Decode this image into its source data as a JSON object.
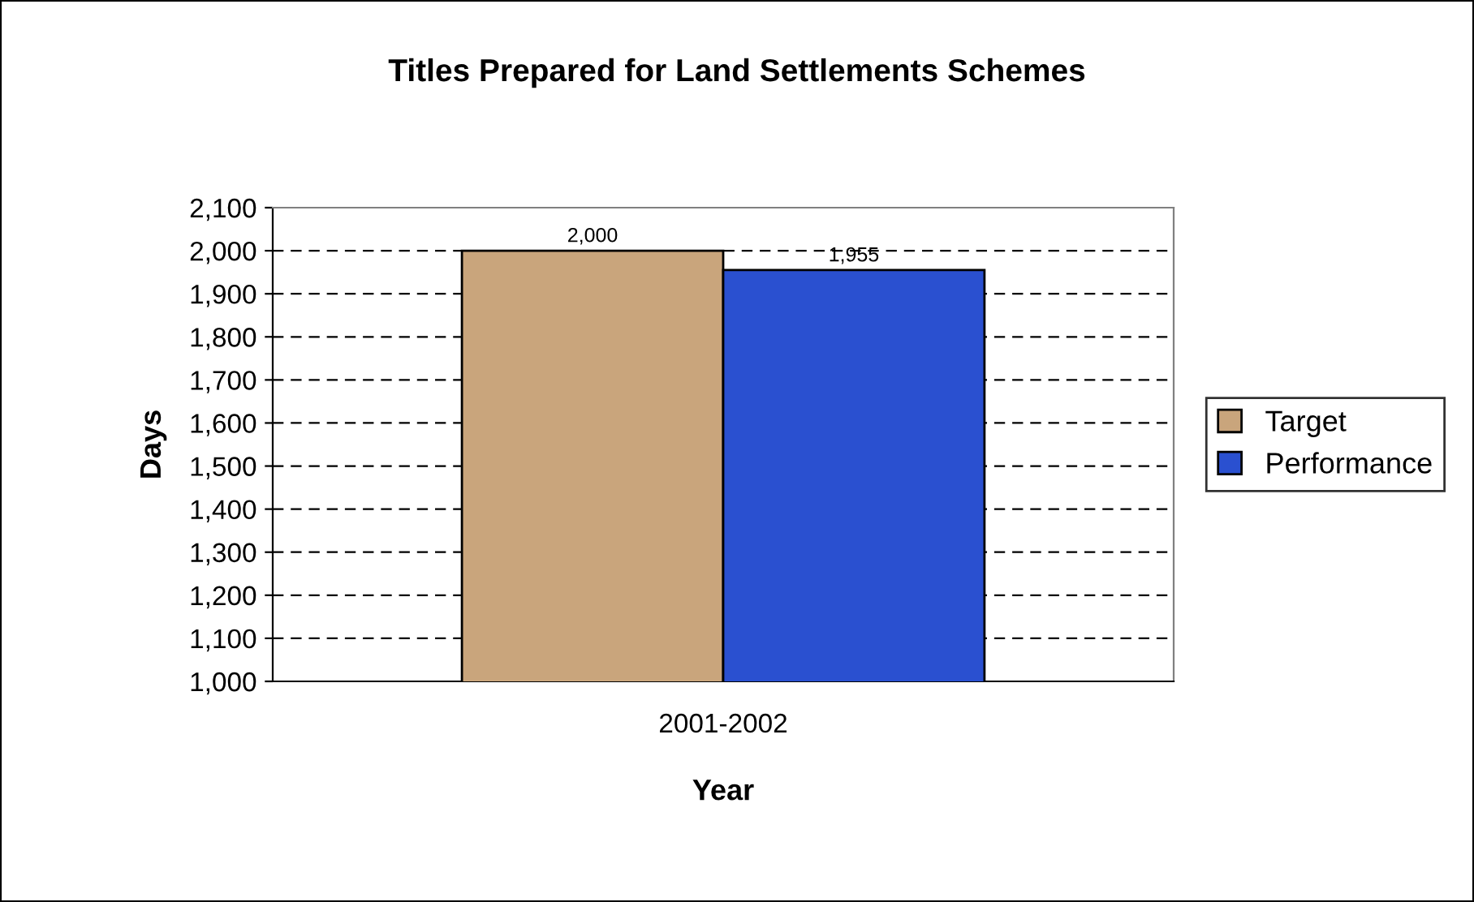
{
  "chart_data": {
    "type": "bar",
    "title": "Titles Prepared for Land Settlements Schemes",
    "xlabel": "Year",
    "ylabel": "Days",
    "categories": [
      "2001-2002"
    ],
    "series": [
      {
        "name": "Target",
        "color": "#c9a57c",
        "values": [
          2000
        ],
        "value_labels": [
          "2,000"
        ]
      },
      {
        "name": "Performance",
        "color": "#2a50d0",
        "values": [
          1955
        ],
        "value_labels": [
          "1,955"
        ]
      }
    ],
    "ylim": [
      1000,
      2100
    ],
    "yticks": [
      {
        "value": 1000,
        "label": "1,000"
      },
      {
        "value": 1100,
        "label": "1,100"
      },
      {
        "value": 1200,
        "label": "1,200"
      },
      {
        "value": 1300,
        "label": "1,300"
      },
      {
        "value": 1400,
        "label": "1,400"
      },
      {
        "value": 1500,
        "label": "1,500"
      },
      {
        "value": 1600,
        "label": "1,600"
      },
      {
        "value": 1700,
        "label": "1,700"
      },
      {
        "value": 1800,
        "label": "1,800"
      },
      {
        "value": 1900,
        "label": "1,900"
      },
      {
        "value": 2000,
        "label": "2,000"
      },
      {
        "value": 2100,
        "label": "2,100"
      }
    ],
    "grid": "y",
    "legend": "right"
  }
}
